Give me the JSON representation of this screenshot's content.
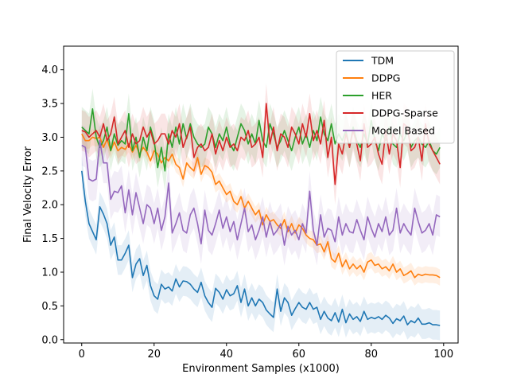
{
  "chart_data": {
    "type": "line",
    "xlabel": "Environment Samples (x1000)",
    "ylabel": "Final Velocity Error",
    "xlim": [
      -5,
      104
    ],
    "ylim": [
      -0.05,
      4.35
    ],
    "xticks": [
      0,
      20,
      40,
      60,
      80,
      100
    ],
    "yticks": [
      0.0,
      0.5,
      1.0,
      1.5,
      2.0,
      2.5,
      3.0,
      3.5,
      4.0
    ],
    "grid": false,
    "legend_position": "top-right",
    "x": [
      0,
      1,
      2,
      3,
      4,
      5,
      6,
      7,
      8,
      9,
      10,
      11,
      12,
      13,
      14,
      15,
      16,
      17,
      18,
      19,
      20,
      21,
      22,
      23,
      24,
      25,
      26,
      27,
      28,
      29,
      30,
      31,
      32,
      33,
      34,
      35,
      36,
      37,
      38,
      39,
      40,
      41,
      42,
      43,
      44,
      45,
      46,
      47,
      48,
      49,
      50,
      51,
      52,
      53,
      54,
      55,
      56,
      57,
      58,
      59,
      60,
      61,
      62,
      63,
      64,
      65,
      66,
      67,
      68,
      69,
      70,
      71,
      72,
      73,
      74,
      75,
      76,
      77,
      78,
      79,
      80,
      81,
      82,
      83,
      84,
      85,
      86,
      87,
      88,
      89,
      90,
      91,
      92,
      93,
      94,
      95,
      96,
      97,
      98,
      99
    ],
    "series": [
      {
        "name": "TDM",
        "color": "#1f77b4",
        "band": 0.22,
        "values": [
          2.5,
          2.05,
          1.72,
          1.6,
          1.48,
          1.97,
          1.86,
          1.72,
          1.4,
          1.52,
          1.18,
          1.18,
          1.28,
          1.4,
          0.92,
          1.12,
          1.2,
          0.95,
          1.1,
          0.8,
          0.65,
          0.6,
          0.82,
          0.75,
          0.78,
          0.72,
          0.9,
          0.78,
          0.87,
          0.86,
          0.82,
          0.75,
          0.7,
          0.85,
          0.65,
          0.55,
          0.48,
          0.76,
          0.7,
          0.6,
          0.74,
          0.65,
          0.68,
          0.8,
          0.55,
          0.75,
          0.5,
          0.62,
          0.5,
          0.6,
          0.55,
          0.44,
          0.38,
          0.33,
          0.75,
          0.42,
          0.62,
          0.55,
          0.36,
          0.46,
          0.55,
          0.48,
          0.45,
          0.55,
          0.45,
          0.48,
          0.3,
          0.42,
          0.32,
          0.28,
          0.4,
          0.26,
          0.45,
          0.25,
          0.38,
          0.3,
          0.34,
          0.27,
          0.42,
          0.3,
          0.33,
          0.31,
          0.34,
          0.3,
          0.36,
          0.32,
          0.24,
          0.31,
          0.28,
          0.35,
          0.22,
          0.28,
          0.25,
          0.32,
          0.23,
          0.23,
          0.25,
          0.22,
          0.22,
          0.21
        ]
      },
      {
        "name": "DDPG",
        "color": "#ff7f0e",
        "band": 0.12,
        "values": [
          3.05,
          2.95,
          2.95,
          3.0,
          2.98,
          3.0,
          2.85,
          2.97,
          2.8,
          2.93,
          2.8,
          2.85,
          2.82,
          2.9,
          2.78,
          2.88,
          2.75,
          2.85,
          2.78,
          2.65,
          2.8,
          2.75,
          2.62,
          2.7,
          2.65,
          2.75,
          2.6,
          2.55,
          2.38,
          2.62,
          2.55,
          2.5,
          2.7,
          2.45,
          2.58,
          2.55,
          2.48,
          2.3,
          2.35,
          2.25,
          2.15,
          2.2,
          2.05,
          2.0,
          2.12,
          1.95,
          2.05,
          1.95,
          1.85,
          1.92,
          1.7,
          1.85,
          1.75,
          1.78,
          1.7,
          1.65,
          1.78,
          1.6,
          1.72,
          1.58,
          1.7,
          1.65,
          1.55,
          1.5,
          1.48,
          1.4,
          1.42,
          1.3,
          1.45,
          1.2,
          1.15,
          1.28,
          1.08,
          1.18,
          1.05,
          1.12,
          1.05,
          1.1,
          1.0,
          1.15,
          1.18,
          1.1,
          1.12,
          1.05,
          1.08,
          1.02,
          1.12,
          1.0,
          1.05,
          0.95,
          0.98,
          1.02,
          0.92,
          0.97,
          0.95,
          0.97,
          0.96,
          0.96,
          0.95,
          0.92
        ]
      },
      {
        "name": "HER",
        "color": "#2ca02c",
        "band": 0.3,
        "values": [
          3.15,
          3.1,
          3.05,
          3.42,
          3.0,
          2.85,
          2.95,
          3.15,
          2.8,
          3.05,
          2.88,
          2.95,
          2.9,
          3.35,
          2.8,
          3.0,
          2.7,
          3.0,
          2.8,
          3.15,
          2.95,
          2.55,
          2.85,
          2.5,
          3.05,
          2.85,
          3.15,
          2.9,
          3.2,
          2.98,
          3.2,
          3.0,
          2.9,
          2.85,
          2.9,
          3.15,
          3.05,
          2.85,
          3.05,
          2.95,
          3.15,
          2.9,
          2.8,
          3.0,
          3.2,
          3.1,
          2.9,
          3.05,
          2.9,
          3.25,
          2.95,
          2.85,
          3.2,
          3.05,
          2.85,
          2.95,
          3.1,
          2.95,
          2.8,
          3.0,
          3.15,
          2.9,
          3.05,
          2.85,
          3.1,
          2.95,
          3.3,
          3.05,
          2.95,
          3.2,
          2.9,
          3.05,
          2.95,
          3.1,
          2.85,
          3.15,
          2.95,
          2.85,
          3.05,
          2.9,
          3.25,
          2.95,
          2.8,
          3.05,
          2.95,
          3.15,
          2.9,
          2.85,
          3.05,
          2.95,
          3.1,
          2.85,
          2.95,
          3.0,
          2.9,
          2.85,
          2.95,
          2.8,
          2.75,
          2.85
        ]
      },
      {
        "name": "DDPG-Sparse",
        "color": "#d62728",
        "band": 0.3,
        "values": [
          3.1,
          3.08,
          3.0,
          3.05,
          3.1,
          3.0,
          3.2,
          2.95,
          3.05,
          3.3,
          2.9,
          3.0,
          3.1,
          2.85,
          3.05,
          2.9,
          2.95,
          3.15,
          3.0,
          3.1,
          2.9,
          2.95,
          3.05,
          3.05,
          2.9,
          3.1,
          3.0,
          3.2,
          2.85,
          3.0,
          3.15,
          2.7,
          2.85,
          2.9,
          2.8,
          2.85,
          3.05,
          2.75,
          2.95,
          2.8,
          3.0,
          2.85,
          2.9,
          2.8,
          3.0,
          2.95,
          3.1,
          2.85,
          2.9,
          3.0,
          2.7,
          3.5,
          2.9,
          3.15,
          2.8,
          3.05,
          3.0,
          2.85,
          3.15,
          3.05,
          2.9,
          3.2,
          3.0,
          3.35,
          2.95,
          3.1,
          2.9,
          3.25,
          2.7,
          3.0,
          2.3,
          2.9,
          2.75,
          3.05,
          2.85,
          3.1,
          2.9,
          2.65,
          3.2,
          2.85,
          2.9,
          3.0,
          2.75,
          2.6,
          3.1,
          2.75,
          3.05,
          2.95,
          2.55,
          3.2,
          3.15,
          2.8,
          2.85,
          3.0,
          2.65,
          3.2,
          2.9,
          2.8,
          2.7,
          2.6
        ]
      },
      {
        "name": "Model Based",
        "color": "#9467bd",
        "band": 0.3,
        "values": [
          2.88,
          2.85,
          2.38,
          2.35,
          2.38,
          2.95,
          2.62,
          2.62,
          2.08,
          2.2,
          2.18,
          2.28,
          1.88,
          2.22,
          1.85,
          2.18,
          1.95,
          1.72,
          2.0,
          1.95,
          1.72,
          1.95,
          1.62,
          1.82,
          2.32,
          1.58,
          1.72,
          1.88,
          1.62,
          1.58,
          1.85,
          1.95,
          1.72,
          1.42,
          1.92,
          1.62,
          1.55,
          1.72,
          1.92,
          1.65,
          1.82,
          1.6,
          1.75,
          1.48,
          1.72,
          1.95,
          1.6,
          1.7,
          1.48,
          1.62,
          1.82,
          1.52,
          1.75,
          1.55,
          1.62,
          1.72,
          1.4,
          1.68,
          1.55,
          1.62,
          1.48,
          1.72,
          1.58,
          2.2,
          1.62,
          1.4,
          1.85,
          1.52,
          1.65,
          1.62,
          1.45,
          1.82,
          1.55,
          1.72,
          1.6,
          1.58,
          1.78,
          1.62,
          1.48,
          1.82,
          1.65,
          1.52,
          1.72,
          1.6,
          1.82,
          1.55,
          1.62,
          1.95,
          1.58,
          1.72,
          1.62,
          1.55,
          1.95,
          1.75,
          1.58,
          1.62,
          1.72,
          1.55,
          1.85,
          1.82
        ]
      }
    ]
  }
}
